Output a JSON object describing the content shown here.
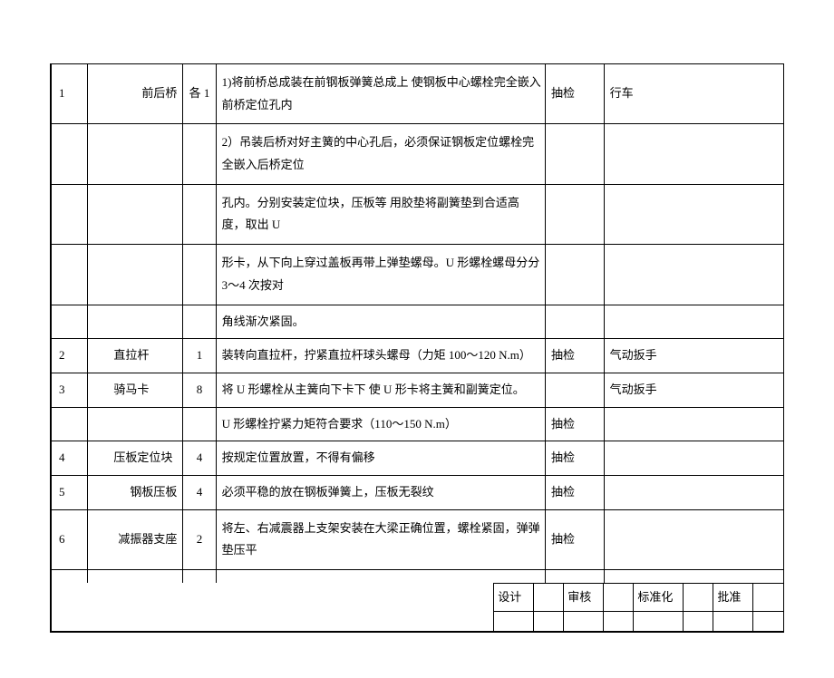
{
  "rows": [
    {
      "num": "1",
      "name": "前后桥",
      "nameAlign": "right",
      "qty": "各 1",
      "desc": "1)将前桥总成装在前钢板弹簧总成上 使钢板中心螺栓完全嵌入前桥定位孔内",
      "check": "抽检",
      "tool": "行车",
      "tall": true
    },
    {
      "num": "",
      "name": "",
      "qty": "",
      "desc": "2）吊装后桥对好主簧的中心孔后，必须保证钢板定位螺栓完全嵌入后桥定位",
      "check": "",
      "tool": "",
      "tall": true
    },
    {
      "num": "",
      "name": "",
      "qty": "",
      "desc": "孔内。分别安装定位块，压板等 用胶垫将副簧垫到合适高度，取出 U",
      "check": "",
      "tool": "",
      "tall": true
    },
    {
      "num": "",
      "name": "",
      "qty": "",
      "desc": "形卡，从下向上穿过盖板再带上弹垫螺母。U 形螺栓螺母分分 3～4 次按对",
      "check": "",
      "tool": "",
      "tall": true
    },
    {
      "num": "",
      "name": "",
      "qty": "",
      "desc": "角线渐次紧固。",
      "check": "",
      "tool": ""
    },
    {
      "num": "2",
      "name": "直拉杆",
      "nameAlign": "left",
      "qty": "1",
      "desc": "装转向直拉杆，拧紧直拉杆球头螺母（力矩 100～120 N.m）",
      "check": "抽检",
      "tool": "气动扳手"
    },
    {
      "num": "3",
      "name": "骑马卡",
      "nameAlign": "left",
      "qty": "8",
      "desc": "将 U 形螺栓从主簧向下卡下 使 U 形卡将主簧和副簧定位。",
      "check": "",
      "tool": "气动扳手"
    },
    {
      "num": "",
      "name": "",
      "qty": "",
      "desc": "U 形螺栓拧紧力矩符合要求（110～150 N.m）",
      "check": "抽检",
      "tool": ""
    },
    {
      "num": "4",
      "name": "压板定位块",
      "nameAlign": "left",
      "qty": "4",
      "desc": "按规定位置放置，不得有偏移",
      "check": "抽检",
      "tool": ""
    },
    {
      "num": "5",
      "name": "钢板压板",
      "nameAlign": "right",
      "qty": "4",
      "desc": "必须平稳的放在钢板弹簧上，压板无裂纹",
      "check": "抽检",
      "tool": ""
    },
    {
      "num": "6",
      "name": "减振器支座",
      "nameAlign": "right",
      "qty": "2",
      "desc": "将左、右减震器上支架安装在大梁正确位置，螺栓紧固，弹弹垫压平",
      "check": "抽检",
      "tool": "",
      "tall": true
    }
  ],
  "footer": {
    "design": "设计",
    "review": "审核",
    "standardize": "标准化",
    "approve": "批准"
  }
}
